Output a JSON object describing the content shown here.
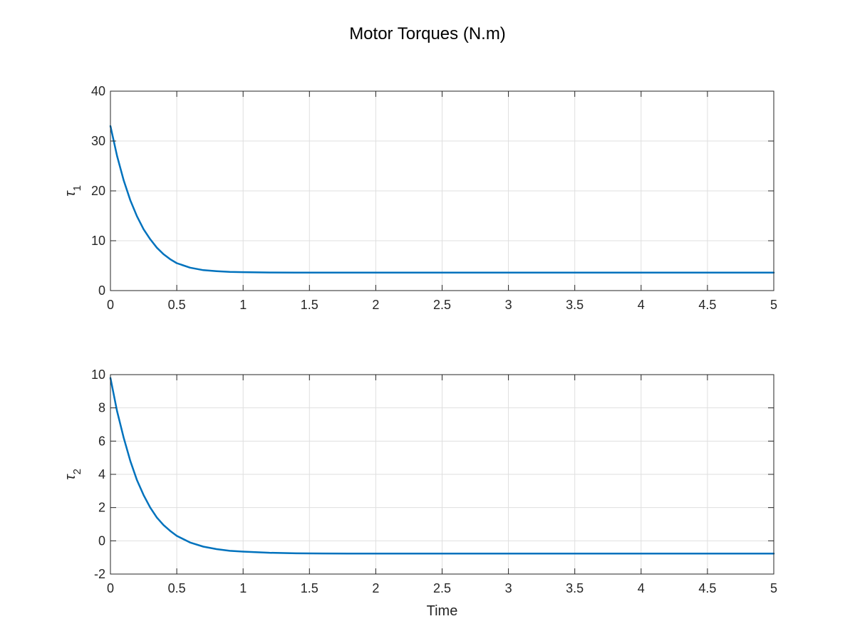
{
  "figure": {
    "title": "Motor Torques (N.m)"
  },
  "style": {
    "line_color": "#0072BD",
    "axis_color": "#262626",
    "grid_color": "#DFDFDF"
  },
  "chart_data": [
    {
      "type": "line",
      "ylabel": {
        "symbol": "τ",
        "subscript": "1"
      },
      "xlabel": "",
      "xlim": [
        0,
        5
      ],
      "ylim": [
        0,
        40
      ],
      "xticks": [
        0,
        0.5,
        1,
        1.5,
        2,
        2.5,
        3,
        3.5,
        4,
        4.5,
        5
      ],
      "xtick_labels": [
        "0",
        "0.5",
        "1",
        "1.5",
        "2",
        "2.5",
        "3",
        "3.5",
        "4",
        "4.5",
        "5"
      ],
      "yticks": [
        0,
        10,
        20,
        30,
        40
      ],
      "ytick_labels": [
        "0",
        "10",
        "20",
        "30",
        "40"
      ],
      "grid": true,
      "series": [
        {
          "x": [
            0,
            0.05,
            0.1,
            0.15,
            0.2,
            0.25,
            0.3,
            0.35,
            0.4,
            0.45,
            0.5,
            0.6,
            0.7,
            0.8,
            0.9,
            1.0,
            1.2,
            1.4,
            1.6,
            1.8,
            2.0,
            2.5,
            3.0,
            3.5,
            4.0,
            4.5,
            5.0
          ],
          "y": [
            33.0,
            27.0,
            22.1,
            18.1,
            14.9,
            12.3,
            10.3,
            8.6,
            7.3,
            6.3,
            5.5,
            4.6,
            4.1,
            3.9,
            3.75,
            3.7,
            3.63,
            3.61,
            3.6,
            3.6,
            3.6,
            3.6,
            3.6,
            3.6,
            3.6,
            3.6,
            3.6
          ]
        }
      ]
    },
    {
      "type": "line",
      "ylabel": {
        "symbol": "τ",
        "subscript": "2"
      },
      "xlabel": "Time",
      "xlim": [
        0,
        5
      ],
      "ylim": [
        -2,
        10
      ],
      "xticks": [
        0,
        0.5,
        1,
        1.5,
        2,
        2.5,
        3,
        3.5,
        4,
        4.5,
        5
      ],
      "xtick_labels": [
        "0",
        "0.5",
        "1",
        "1.5",
        "2",
        "2.5",
        "3",
        "3.5",
        "4",
        "4.5",
        "5"
      ],
      "yticks": [
        -2,
        0,
        2,
        4,
        6,
        8,
        10
      ],
      "ytick_labels": [
        "-2",
        "0",
        "2",
        "4",
        "6",
        "8",
        "10"
      ],
      "grid": true,
      "series": [
        {
          "x": [
            0,
            0.05,
            0.1,
            0.15,
            0.2,
            0.25,
            0.3,
            0.35,
            0.4,
            0.45,
            0.5,
            0.6,
            0.7,
            0.8,
            0.9,
            1.0,
            1.2,
            1.4,
            1.6,
            1.8,
            2.0,
            2.5,
            3.0,
            3.5,
            4.0,
            4.5,
            5.0
          ],
          "y": [
            9.8,
            7.8,
            6.2,
            4.8,
            3.65,
            2.75,
            2.0,
            1.4,
            0.95,
            0.6,
            0.3,
            -0.1,
            -0.35,
            -0.5,
            -0.6,
            -0.65,
            -0.72,
            -0.75,
            -0.76,
            -0.77,
            -0.77,
            -0.77,
            -0.77,
            -0.77,
            -0.77,
            -0.77,
            -0.77
          ]
        }
      ]
    }
  ]
}
